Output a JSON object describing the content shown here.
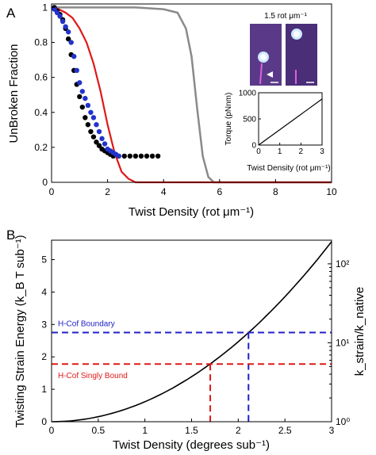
{
  "panel_a": {
    "letter": "A",
    "micrograph_label": "1.5 rot μm⁻¹"
  },
  "panel_b": {
    "letter": "B"
  },
  "colors": {
    "black_series": "#000000",
    "blue_series": "#2233cc",
    "red_series": "#e01818",
    "gray_series": "#8a8a8a",
    "boundary_dashed": "#2020c8",
    "singly_bound_dashed": "#e01818"
  },
  "chart_data": [
    {
      "id": "A-main",
      "type": "scatter",
      "xlabel": "Twist Density (rot μm⁻¹)",
      "ylabel": "UnBroken Fraction",
      "xlim": [
        0,
        10
      ],
      "ylim": [
        0,
        1.02
      ],
      "x_ticks": [
        0,
        2,
        4,
        6,
        8,
        10
      ],
      "y_ticks": [
        0,
        0.2,
        0.4,
        0.6,
        0.8,
        1
      ],
      "series": [
        {
          "role": "black-points",
          "x": [
            0.1,
            0.2,
            0.3,
            0.4,
            0.5,
            0.6,
            0.7,
            0.8,
            0.9,
            1.0,
            1.1,
            1.2,
            1.3,
            1.4,
            1.5,
            1.6,
            1.7,
            1.8,
            1.9,
            2.0,
            2.1,
            2.2,
            2.4,
            2.6,
            2.8,
            3.0,
            3.2,
            3.4,
            3.6,
            3.8
          ],
          "y": [
            1.0,
            0.98,
            0.96,
            0.93,
            0.88,
            0.82,
            0.73,
            0.64,
            0.56,
            0.49,
            0.43,
            0.37,
            0.33,
            0.29,
            0.26,
            0.23,
            0.21,
            0.19,
            0.18,
            0.17,
            0.16,
            0.15,
            0.15,
            0.15,
            0.15,
            0.15,
            0.15,
            0.15,
            0.15,
            0.15
          ]
        },
        {
          "role": "blue-points",
          "x": [
            0.1,
            0.2,
            0.3,
            0.4,
            0.5,
            0.6,
            0.7,
            0.8,
            0.9,
            1.0,
            1.1,
            1.2,
            1.3,
            1.4,
            1.5,
            1.6,
            1.7,
            1.8,
            1.9,
            2.0,
            2.1,
            2.2,
            2.3,
            2.4
          ],
          "y": [
            0.99,
            0.97,
            0.95,
            0.92,
            0.89,
            0.86,
            0.8,
            0.72,
            0.64,
            0.57,
            0.52,
            0.48,
            0.44,
            0.4,
            0.37,
            0.33,
            0.29,
            0.25,
            0.22,
            0.19,
            0.18,
            0.17,
            0.16,
            0.15
          ]
        },
        {
          "role": "red-fit",
          "x": [
            0,
            0.25,
            0.5,
            0.75,
            1.0,
            1.25,
            1.5,
            1.75,
            2.0,
            2.25,
            2.5,
            2.75,
            3.0,
            4.0,
            10
          ],
          "y": [
            1.0,
            0.99,
            0.97,
            0.94,
            0.88,
            0.8,
            0.68,
            0.52,
            0.33,
            0.17,
            0.06,
            0.02,
            0.0,
            0.0,
            0.0
          ]
        },
        {
          "role": "gray-fit",
          "x": [
            0,
            3.0,
            4.0,
            4.5,
            4.8,
            5.0,
            5.2,
            5.4,
            5.6,
            5.8,
            6.0,
            10
          ],
          "y": [
            1.0,
            1.0,
            0.99,
            0.97,
            0.88,
            0.72,
            0.42,
            0.15,
            0.03,
            0.0,
            0.0,
            0.0
          ]
        }
      ]
    },
    {
      "id": "A-inset",
      "type": "line",
      "xlabel": "Twist Density (rot μm⁻¹)",
      "ylabel": "Torque (pNnm)",
      "xlim": [
        0,
        3
      ],
      "ylim": [
        0,
        1000
      ],
      "x_ticks": [
        0,
        1,
        2,
        3
      ],
      "y_ticks": [
        0,
        500,
        1000
      ],
      "x": [
        0,
        3
      ],
      "y": [
        0,
        880
      ]
    },
    {
      "id": "B",
      "type": "line",
      "xlabel": "Twist Density (degrees sub⁻¹)",
      "ylabel": "Twisting Strain Energy (k_B T sub⁻¹)",
      "ylabel_right": "k_strain/k_native",
      "xlim": [
        0,
        3
      ],
      "ylim": [
        0,
        5.6
      ],
      "x_ticks": [
        0,
        0.5,
        1,
        1.5,
        2,
        2.5,
        3
      ],
      "x_tick_labels": [
        "0",
        "0.5",
        "1",
        "1.5",
        "2",
        "2.5",
        "3"
      ],
      "y_ticks": [
        0,
        1,
        2,
        3,
        4,
        5
      ],
      "right_axis_scale": "log",
      "right_ticks": [
        "10⁰",
        "10¹",
        "10²"
      ],
      "energy_curve": {
        "coefficient": 0.617,
        "exponent": 2
      },
      "boundaries": [
        {
          "label": "H-Cof Boundary",
          "x": 2.11,
          "y": 2.75,
          "color": "#2020c8"
        },
        {
          "label": "H-Cof Singly Bound",
          "x": 1.7,
          "y": 1.78,
          "color": "#e01818"
        }
      ]
    }
  ]
}
